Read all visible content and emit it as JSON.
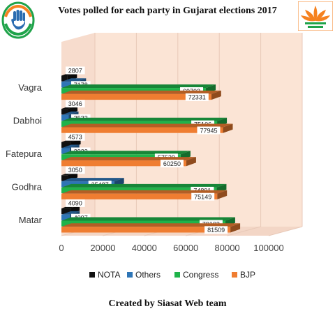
{
  "chart_data": {
    "type": "bar",
    "orientation": "horizontal",
    "title": "Votes polled for each party in Gujarat elections 2017",
    "categories": [
      "Matar",
      "Godhra",
      "Fatepura",
      "Dabhoi",
      "Vagra"
    ],
    "series": [
      {
        "name": "NOTA",
        "color": "#111111",
        "values": [
          4090,
          3050,
          4573,
          3046,
          2807
        ]
      },
      {
        "name": "Others",
        "color": "#2e75b6",
        "values": [
          4097,
          25487,
          3933,
          3532,
          7178
        ]
      },
      {
        "name": "Congress",
        "color": "#1fb34a",
        "values": [
          79103,
          74891,
          57539,
          75106,
          69703
        ]
      },
      {
        "name": "BJP",
        "color": "#ef7d31",
        "values": [
          81509,
          75149,
          60250,
          77945,
          72331
        ]
      }
    ],
    "xlim": [
      0,
      100000
    ],
    "x_ticks": [
      "0",
      "20000",
      "40000",
      "60000",
      "80000",
      "100000"
    ],
    "legend_position": "bottom",
    "grid": true
  },
  "logos": {
    "left": {
      "name": "congress-hand-logo",
      "color": "#1fa34a"
    },
    "right": {
      "name": "bjp-lotus-logo",
      "color": "#f58220"
    }
  },
  "footer": "Created by Siasat Web team"
}
